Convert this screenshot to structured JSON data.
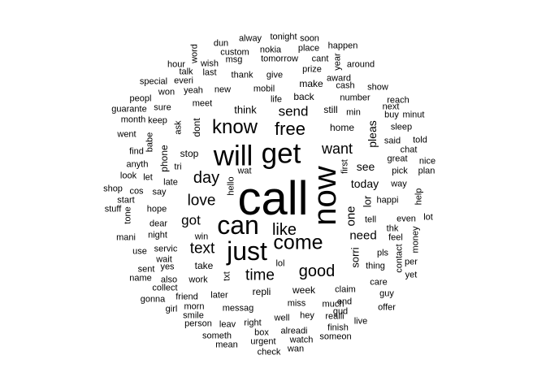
{
  "text_color": "#000000",
  "background": "#ffffff",
  "words": [
    {
      "text": "call",
      "weight": 1.0,
      "vertical": false
    },
    {
      "text": "now",
      "weight": 0.69,
      "vertical": true
    },
    {
      "text": "get",
      "weight": 0.6,
      "vertical": false
    },
    {
      "text": "will",
      "weight": 0.6,
      "vertical": false
    },
    {
      "text": "can",
      "weight": 0.56,
      "vertical": false
    },
    {
      "text": "just",
      "weight": 0.55,
      "vertical": false
    },
    {
      "text": "come",
      "weight": 0.43,
      "vertical": false
    },
    {
      "text": "know",
      "weight": 0.42,
      "vertical": false
    },
    {
      "text": "free",
      "weight": 0.38,
      "vertical": false
    },
    {
      "text": "day",
      "weight": 0.35,
      "vertical": false
    },
    {
      "text": "like",
      "weight": 0.34,
      "vertical": false
    },
    {
      "text": "good",
      "weight": 0.34,
      "vertical": false
    },
    {
      "text": "love",
      "weight": 0.33,
      "vertical": false
    },
    {
      "text": "time",
      "weight": 0.33,
      "vertical": false
    },
    {
      "text": "text",
      "weight": 0.32,
      "vertical": false
    },
    {
      "text": "want",
      "weight": 0.31,
      "vertical": false
    },
    {
      "text": "got",
      "weight": 0.3,
      "vertical": false
    },
    {
      "text": "send",
      "weight": 0.29,
      "vertical": false
    },
    {
      "text": "need",
      "weight": 0.26,
      "vertical": false
    },
    {
      "text": "one",
      "weight": 0.25,
      "vertical": true
    },
    {
      "text": "today",
      "weight": 0.24,
      "vertical": false
    },
    {
      "text": "see",
      "weight": 0.24,
      "vertical": false
    },
    {
      "text": "pleas",
      "weight": 0.24,
      "vertical": true
    },
    {
      "text": "sorri",
      "weight": 0.23,
      "vertical": true
    },
    {
      "text": "lor",
      "weight": 0.23,
      "vertical": true
    },
    {
      "text": "think",
      "weight": 0.22,
      "vertical": false
    },
    {
      "text": "home",
      "weight": 0.21,
      "vertical": false
    },
    {
      "text": "dont",
      "weight": 0.2,
      "vertical": true
    },
    {
      "text": "phone",
      "weight": 0.2,
      "vertical": true
    },
    {
      "text": "make",
      "weight": 0.2,
      "vertical": false
    },
    {
      "text": "back",
      "weight": 0.2,
      "vertical": false
    },
    {
      "text": "still",
      "weight": 0.2,
      "vertical": false
    },
    {
      "text": "stop",
      "weight": 0.2,
      "vertical": false
    },
    {
      "text": "take",
      "weight": 0.2,
      "vertical": false
    },
    {
      "text": "week",
      "weight": 0.2,
      "vertical": false
    },
    {
      "text": "repli",
      "weight": 0.2,
      "vertical": false
    },
    {
      "text": "happi",
      "weight": 0.19,
      "vertical": false
    },
    {
      "text": "tell",
      "weight": 0.19,
      "vertical": false
    },
    {
      "text": "mobil",
      "weight": 0.19,
      "vertical": false
    },
    {
      "text": "new",
      "weight": 0.19,
      "vertical": false
    },
    {
      "text": "txt",
      "weight": 0.19,
      "vertical": true
    },
    {
      "text": "say",
      "weight": 0.18,
      "vertical": false
    },
    {
      "text": "ask",
      "weight": 0.18,
      "vertical": true
    },
    {
      "text": "meet",
      "weight": 0.18,
      "vertical": false
    },
    {
      "text": "work",
      "weight": 0.18,
      "vertical": false
    },
    {
      "text": "miss",
      "weight": 0.18,
      "vertical": false
    },
    {
      "text": "number",
      "weight": 0.17,
      "vertical": false
    },
    {
      "text": "great",
      "weight": 0.17,
      "vertical": false
    },
    {
      "text": "thing",
      "weight": 0.17,
      "vertical": false
    },
    {
      "text": "much",
      "weight": 0.17,
      "vertical": false
    },
    {
      "text": "pls",
      "weight": 0.17,
      "vertical": false
    },
    {
      "text": "messag",
      "weight": 0.17,
      "vertical": false
    },
    {
      "text": "later",
      "weight": 0.17,
      "vertical": false
    },
    {
      "text": "claim",
      "weight": 0.16,
      "vertical": false
    },
    {
      "text": "hope",
      "weight": 0.16,
      "vertical": false
    },
    {
      "text": "dear",
      "weight": 0.16,
      "vertical": false
    },
    {
      "text": "night",
      "weight": 0.16,
      "vertical": false
    },
    {
      "text": "well",
      "weight": 0.16,
      "vertical": false
    },
    {
      "text": "hey",
      "weight": 0.16,
      "vertical": false
    },
    {
      "text": "wait",
      "weight": 0.15,
      "vertical": false
    },
    {
      "text": "give",
      "weight": 0.15,
      "vertical": false
    },
    {
      "text": "thank",
      "weight": 0.15,
      "vertical": false
    },
    {
      "text": "yeah",
      "weight": 0.15,
      "vertical": false
    },
    {
      "text": "tri",
      "weight": 0.15,
      "vertical": false
    },
    {
      "text": "friend",
      "weight": 0.15,
      "vertical": false
    },
    {
      "text": "right",
      "weight": 0.15,
      "vertical": false
    },
    {
      "text": "realli",
      "weight": 0.15,
      "vertical": false
    },
    {
      "text": "alreadi",
      "weight": 0.15,
      "vertical": false
    },
    {
      "text": "pick",
      "weight": 0.15,
      "vertical": false
    },
    {
      "text": "way",
      "weight": 0.15,
      "vertical": false
    },
    {
      "text": "said",
      "weight": 0.14,
      "vertical": false
    },
    {
      "text": "feel",
      "weight": 0.14,
      "vertical": false
    },
    {
      "text": "even",
      "weight": 0.14,
      "vertical": false
    },
    {
      "text": "sleep",
      "weight": 0.14,
      "vertical": false
    },
    {
      "text": "leav",
      "weight": 0.14,
      "vertical": false
    },
    {
      "text": "care",
      "weight": 0.14,
      "vertical": false
    },
    {
      "text": "prize",
      "weight": 0.14,
      "vertical": false
    },
    {
      "text": "tomorrow",
      "weight": 0.14,
      "vertical": false
    },
    {
      "text": "last",
      "weight": 0.14,
      "vertical": false
    },
    {
      "text": "wish",
      "weight": 0.14,
      "vertical": false
    },
    {
      "text": "msg",
      "weight": 0.14,
      "vertical": false
    },
    {
      "text": "nokia",
      "weight": 0.13,
      "vertical": false
    },
    {
      "text": "wat",
      "weight": 0.13,
      "vertical": false
    },
    {
      "text": "min",
      "weight": 0.13,
      "vertical": false
    },
    {
      "text": "cash",
      "weight": 0.13,
      "vertical": false
    },
    {
      "text": "sure",
      "weight": 0.13,
      "vertical": false
    },
    {
      "text": "keep",
      "weight": 0.13,
      "vertical": false
    },
    {
      "text": "yes",
      "weight": 0.13,
      "vertical": false
    },
    {
      "text": "lol",
      "weight": 0.13,
      "vertical": false
    },
    {
      "text": "morn",
      "weight": 0.13,
      "vertical": false
    },
    {
      "text": "someth",
      "weight": 0.13,
      "vertical": false
    },
    {
      "text": "finish",
      "weight": 0.13,
      "vertical": false
    },
    {
      "text": "someon",
      "weight": 0.13,
      "vertical": false
    },
    {
      "text": "watch",
      "weight": 0.13,
      "vertical": false
    },
    {
      "text": "urgent",
      "weight": 0.13,
      "vertical": false
    },
    {
      "text": "person",
      "weight": 0.12,
      "vertical": false
    },
    {
      "text": "smile",
      "weight": 0.12,
      "vertical": false
    },
    {
      "text": "servic",
      "weight": 0.12,
      "vertical": false
    },
    {
      "text": "contact",
      "weight": 0.12,
      "vertical": true
    },
    {
      "text": "won",
      "weight": 0.12,
      "vertical": false
    },
    {
      "text": "everi",
      "weight": 0.12,
      "vertical": false
    },
    {
      "text": "cant",
      "weight": 0.12,
      "vertical": false
    },
    {
      "text": "place",
      "weight": 0.12,
      "vertical": false
    },
    {
      "text": "award",
      "weight": 0.12,
      "vertical": false
    },
    {
      "text": "around",
      "weight": 0.12,
      "vertical": false
    },
    {
      "text": "show",
      "weight": 0.12,
      "vertical": false
    },
    {
      "text": "buy",
      "weight": 0.12,
      "vertical": false
    },
    {
      "text": "life",
      "weight": 0.12,
      "vertical": false
    },
    {
      "text": "let",
      "weight": 0.12,
      "vertical": false
    },
    {
      "text": "find",
      "weight": 0.12,
      "vertical": false
    },
    {
      "text": "cos",
      "weight": 0.12,
      "vertical": false
    },
    {
      "text": "anyth",
      "weight": 0.12,
      "vertical": false
    },
    {
      "text": "look",
      "weight": 0.12,
      "vertical": false
    },
    {
      "text": "use",
      "weight": 0.11,
      "vertical": false
    },
    {
      "text": "win",
      "weight": 0.11,
      "vertical": false
    },
    {
      "text": "also",
      "weight": 0.11,
      "vertical": false
    },
    {
      "text": "collect",
      "weight": 0.11,
      "vertical": false
    },
    {
      "text": "gonna",
      "weight": 0.11,
      "vertical": false
    },
    {
      "text": "girl",
      "weight": 0.11,
      "vertical": false
    },
    {
      "text": "end",
      "weight": 0.11,
      "vertical": false
    },
    {
      "text": "gud",
      "weight": 0.11,
      "vertical": false
    },
    {
      "text": "live",
      "weight": 0.11,
      "vertical": false
    },
    {
      "text": "offer",
      "weight": 0.11,
      "vertical": false
    },
    {
      "text": "guy",
      "weight": 0.11,
      "vertical": false
    },
    {
      "text": "yet",
      "weight": 0.11,
      "vertical": false
    },
    {
      "text": "per",
      "weight": 0.11,
      "vertical": false
    },
    {
      "text": "thk",
      "weight": 0.11,
      "vertical": false
    },
    {
      "text": "box",
      "weight": 0.11,
      "vertical": false
    },
    {
      "text": "check",
      "weight": 0.11,
      "vertical": false
    },
    {
      "text": "wan",
      "weight": 0.11,
      "vertical": false
    },
    {
      "text": "mean",
      "weight": 0.11,
      "vertical": false
    },
    {
      "text": "sent",
      "weight": 0.11,
      "vertical": false
    },
    {
      "text": "name",
      "weight": 0.11,
      "vertical": false
    },
    {
      "text": "late",
      "weight": 0.11,
      "vertical": false
    },
    {
      "text": "babe",
      "weight": 0.11,
      "vertical": true
    },
    {
      "text": "went",
      "weight": 0.11,
      "vertical": false
    },
    {
      "text": "month",
      "weight": 0.1,
      "vertical": false
    },
    {
      "text": "guarante",
      "weight": 0.1,
      "vertical": false
    },
    {
      "text": "peopl",
      "weight": 0.1,
      "vertical": false
    },
    {
      "text": "special",
      "weight": 0.1,
      "vertical": false
    },
    {
      "text": "hour",
      "weight": 0.1,
      "vertical": false
    },
    {
      "text": "talk",
      "weight": 0.1,
      "vertical": false
    },
    {
      "text": "word",
      "weight": 0.1,
      "vertical": true
    },
    {
      "text": "dun",
      "weight": 0.1,
      "vertical": false
    },
    {
      "text": "custom",
      "weight": 0.1,
      "vertical": false
    },
    {
      "text": "alway",
      "weight": 0.1,
      "vertical": false
    },
    {
      "text": "tonight",
      "weight": 0.1,
      "vertical": false
    },
    {
      "text": "soon",
      "weight": 0.1,
      "vertical": false
    },
    {
      "text": "year",
      "weight": 0.1,
      "vertical": true
    },
    {
      "text": "happen",
      "weight": 0.1,
      "vertical": false
    },
    {
      "text": "reach",
      "weight": 0.1,
      "vertical": false
    },
    {
      "text": "next",
      "weight": 0.1,
      "vertical": false
    },
    {
      "text": "minut",
      "weight": 0.1,
      "vertical": false
    },
    {
      "text": "told",
      "weight": 0.1,
      "vertical": false
    },
    {
      "text": "chat",
      "weight": 0.1,
      "vertical": false
    },
    {
      "text": "nice",
      "weight": 0.1,
      "vertical": false
    },
    {
      "text": "plan",
      "weight": 0.1,
      "vertical": false
    },
    {
      "text": "first",
      "weight": 0.1,
      "vertical": true
    },
    {
      "text": "help",
      "weight": 0.1,
      "vertical": true
    },
    {
      "text": "lot",
      "weight": 0.1,
      "vertical": false
    },
    {
      "text": "money",
      "weight": 0.1,
      "vertical": true
    },
    {
      "text": "hello",
      "weight": 0.1,
      "vertical": true
    },
    {
      "text": "tone",
      "weight": 0.1,
      "vertical": true
    },
    {
      "text": "shop",
      "weight": 0.1,
      "vertical": false
    },
    {
      "text": "start",
      "weight": 0.1,
      "vertical": false
    },
    {
      "text": "stuff",
      "weight": 0.1,
      "vertical": false
    },
    {
      "text": "mani",
      "weight": 0.1,
      "vertical": false
    }
  ]
}
